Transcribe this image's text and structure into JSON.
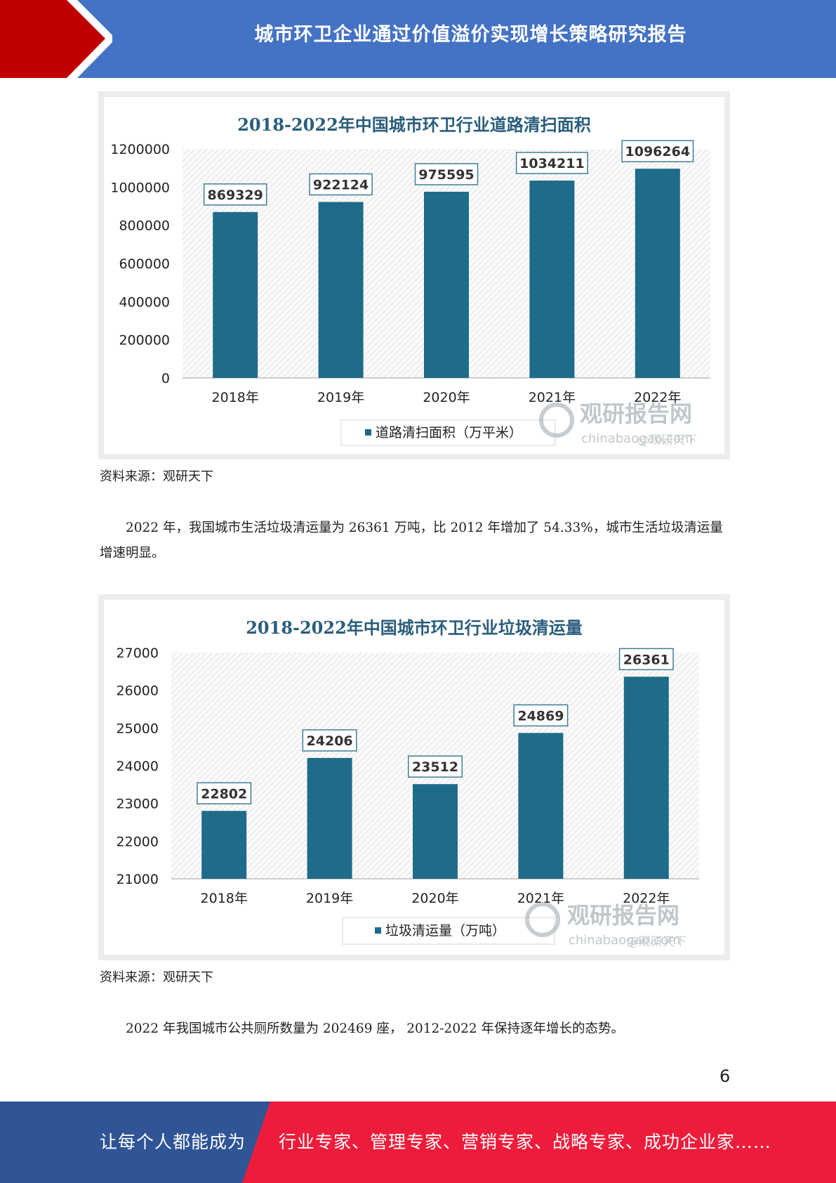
{
  "header": {
    "title": "城市环卫企业通过价值溢价实现增长策略研究报告"
  },
  "chart1": {
    "title": "2018-2022年中国城市环卫行业道路清扫面积",
    "legend": "道路清扫面积（万平米）",
    "source": "资料来源：观研天下"
  },
  "chart2": {
    "title": "2018-2022年中国城市环卫行业垃圾清运量",
    "legend": "垃圾清运量（万吨）",
    "source": "资料来源：观研天下"
  },
  "watermark": {
    "brand": "观研报告网",
    "url": "chinabaogao.com",
    "handle": "@观研天下"
  },
  "paragraphs": {
    "p1": "2022 年，我国城市生活垃圾清运量为 26361 万吨，比 2012 年增加了 54.33%，城市生活垃圾清运量增速明显。",
    "p2": "2022 年我国城市公共厕所数量为 202469 座， 2012-2022 年保持逐年增长的态势。"
  },
  "page_number": "6",
  "footer": {
    "left": "让每个人都能成为",
    "right": "行业专家、管理专家、营销专家、战略专家、成功企业家……"
  },
  "colors": {
    "header_blue": "#4472c4",
    "header_red": "#c00000",
    "footer_blue": "#2f5597",
    "footer_red": "#ee1c3b",
    "bar": "#1f6b8a"
  },
  "chart_data": [
    {
      "type": "bar",
      "title": "2018-2022年中国城市环卫行业道路清扫面积",
      "categories": [
        "2018年",
        "2019年",
        "2020年",
        "2021年",
        "2022年"
      ],
      "series": [
        {
          "name": "道路清扫面积（万平米）",
          "values": [
            869329,
            922124,
            975595,
            1034211,
            1096264
          ]
        }
      ],
      "yticks": [
        "0",
        "200000",
        "400000",
        "600000",
        "800000",
        "1000000",
        "1200000"
      ],
      "ylim": [
        0,
        1200000
      ],
      "legend": "bottom"
    },
    {
      "type": "bar",
      "title": "2018-2022年中国城市环卫行业垃圾清运量",
      "categories": [
        "2018年",
        "2019年",
        "2020年",
        "2021年",
        "2022年"
      ],
      "series": [
        {
          "name": "垃圾清运量（万吨）",
          "values": [
            22802,
            24206,
            23512,
            24869,
            26361
          ]
        }
      ],
      "yticks": [
        "21000",
        "22000",
        "23000",
        "24000",
        "25000",
        "26000",
        "27000"
      ],
      "ylim": [
        21000,
        27000
      ],
      "legend": "bottom"
    }
  ]
}
